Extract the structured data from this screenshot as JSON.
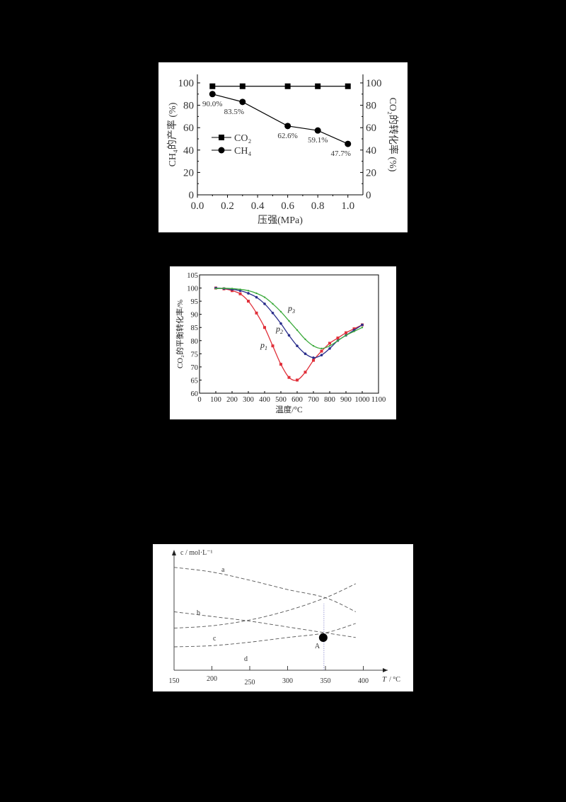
{
  "chart_data": [
    {
      "type": "line",
      "title": "",
      "xlabel": "压强(MPa)",
      "ylabel": "CH4的产率 (%)",
      "ylabel_right": "CO2的转化率 (%)",
      "xlim": [
        0.0,
        1.1
      ],
      "ylim": [
        0,
        100
      ],
      "ylim_right": [
        0,
        100
      ],
      "x_ticks": [
        "0.0",
        "0.2",
        "0.4",
        "0.6",
        "0.8",
        "1.0"
      ],
      "y_ticks": [
        "0",
        "20",
        "40",
        "60",
        "80",
        "100"
      ],
      "y_ticks_right": [
        "0",
        "20",
        "40",
        "60",
        "80",
        "100"
      ],
      "x": [
        0.1,
        0.3,
        0.6,
        0.8,
        1.0
      ],
      "series": [
        {
          "name": "CO2",
          "marker": "square",
          "axis": "right",
          "values": [
            97,
            97,
            97,
            97,
            97
          ]
        },
        {
          "name": "CH4",
          "marker": "circle",
          "axis": "left",
          "values": [
            90.0,
            83.5,
            62.6,
            59.1,
            47.7
          ],
          "annotations": [
            "90.0%",
            "83.5%",
            "62.6%",
            "59.1%",
            "47.7%"
          ]
        }
      ],
      "legend": {
        "position": "center-left",
        "entries": [
          "CO2",
          "CH4"
        ]
      },
      "grid": false
    },
    {
      "type": "line",
      "title": "",
      "xlabel": "温度/°C",
      "ylabel": "CO2的平衡转化率/%",
      "xlim": [
        0,
        1100
      ],
      "ylim": [
        60,
        105
      ],
      "x_ticks": [
        "0",
        "100",
        "200",
        "300",
        "400",
        "500",
        "600",
        "700",
        "800",
        "900",
        "1000",
        "1100"
      ],
      "y_ticks": [
        "60",
        "65",
        "70",
        "75",
        "80",
        "85",
        "90",
        "95",
        "100",
        "105"
      ],
      "x": [
        100,
        150,
        200,
        250,
        300,
        350,
        400,
        450,
        500,
        550,
        600,
        650,
        700,
        750,
        800,
        850,
        900,
        950,
        1000
      ],
      "series": [
        {
          "name": "p1",
          "color": "#e0303a",
          "values": [
            100,
            99.7,
            99,
            97.8,
            95,
            90.5,
            85,
            78,
            71,
            66,
            65,
            68,
            72.5,
            76,
            79,
            81,
            83,
            84.5,
            86
          ]
        },
        {
          "name": "p2",
          "color": "#2a2e8c",
          "values": [
            100,
            99.8,
            99.5,
            99,
            98,
            96.5,
            94,
            90.5,
            86.5,
            82,
            78,
            75,
            73.5,
            74.5,
            77,
            80,
            82,
            84,
            86
          ]
        },
        {
          "name": "p3",
          "color": "#3caa3c",
          "values": [
            99.8,
            99.9,
            99.8,
            99.5,
            99,
            98,
            96.5,
            94,
            91,
            87.5,
            84,
            80.5,
            78,
            77,
            78,
            80,
            82,
            83.5,
            85
          ]
        }
      ],
      "labels": [
        "p1",
        "p2",
        "p3"
      ],
      "grid": false
    },
    {
      "type": "line",
      "title": "",
      "xlabel": "T / °C",
      "ylabel": "c / mol·L⁻¹",
      "xlim": [
        150,
        410
      ],
      "x_ticks": [
        "150",
        "200",
        "250",
        "300",
        "350",
        "400"
      ],
      "x": [
        150,
        200,
        250,
        300,
        350,
        390
      ],
      "series": [
        {
          "name": "a",
          "style": "dashed",
          "values": [
            0.88,
            0.84,
            0.77,
            0.69,
            0.62,
            0.5
          ]
        },
        {
          "name": "b",
          "style": "dashed",
          "values": [
            0.5,
            0.46,
            0.42,
            0.37,
            0.32,
            0.28
          ]
        },
        {
          "name": "c",
          "style": "dashed",
          "values": [
            0.36,
            0.38,
            0.43,
            0.51,
            0.62,
            0.74
          ]
        },
        {
          "name": "d",
          "style": "dashed",
          "values": [
            0.2,
            0.21,
            0.24,
            0.28,
            0.32,
            0.4
          ]
        }
      ],
      "annotations": [
        {
          "label": "A",
          "x": 348,
          "note": "intersection of b and d, marked with filled circle; dotted vertical line at ~348°C"
        }
      ],
      "grid": false
    }
  ]
}
